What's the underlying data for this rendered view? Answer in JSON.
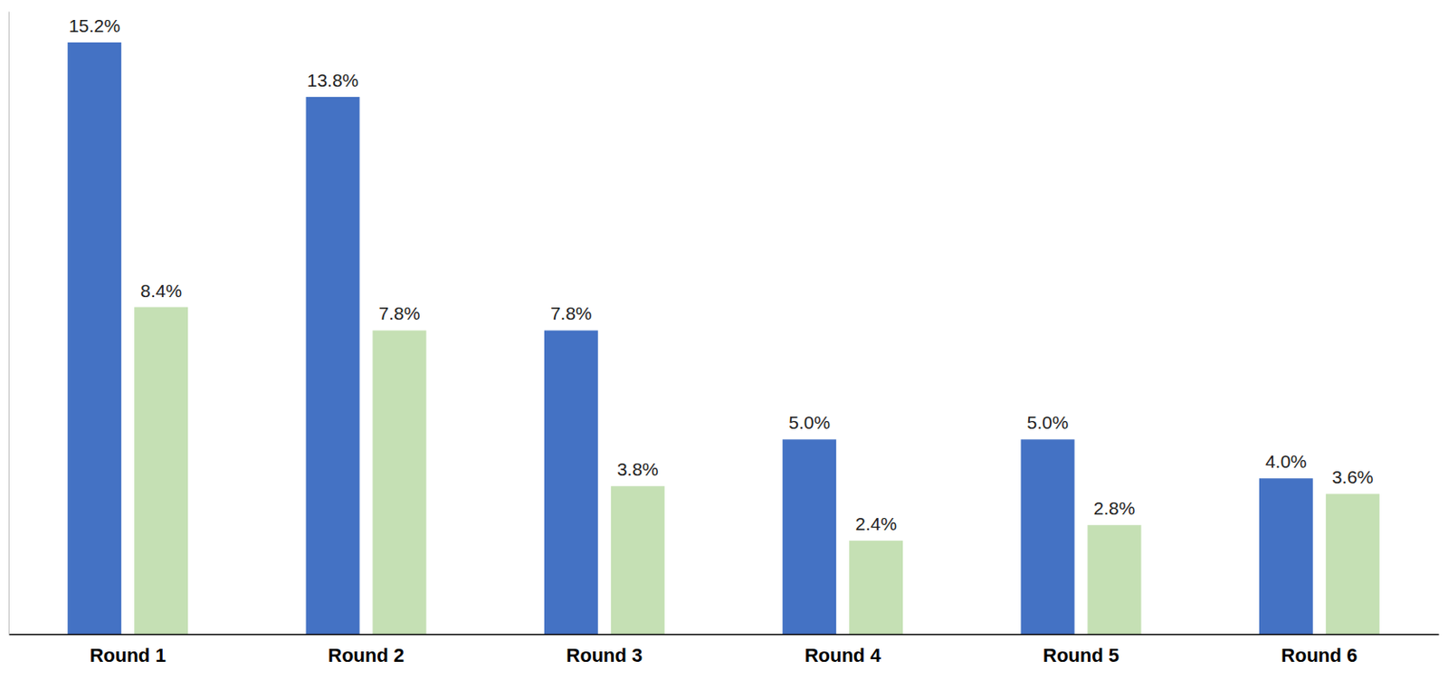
{
  "chart_data": {
    "type": "bar",
    "categories": [
      "Round 1",
      "Round 2",
      "Round 3",
      "Round 4",
      "Round 5",
      "Round 6"
    ],
    "series": [
      {
        "color": "#4472c4",
        "values": [
          15.2,
          13.8,
          7.8,
          5.0,
          5.0,
          4.0
        ],
        "value_labels": [
          "15.2%",
          "13.8%",
          "7.8%",
          "5.0%",
          "5.0%",
          "4.0%"
        ]
      },
      {
        "color": "#c5e0b4",
        "values": [
          8.4,
          7.8,
          3.8,
          2.4,
          2.8,
          3.6
        ],
        "value_labels": [
          "8.4%",
          "7.8%",
          "3.8%",
          "2.4%",
          "2.8%",
          "3.6%"
        ]
      }
    ],
    "ylim": [
      0,
      16
    ],
    "data_labels": true,
    "tick_labels": "x"
  }
}
